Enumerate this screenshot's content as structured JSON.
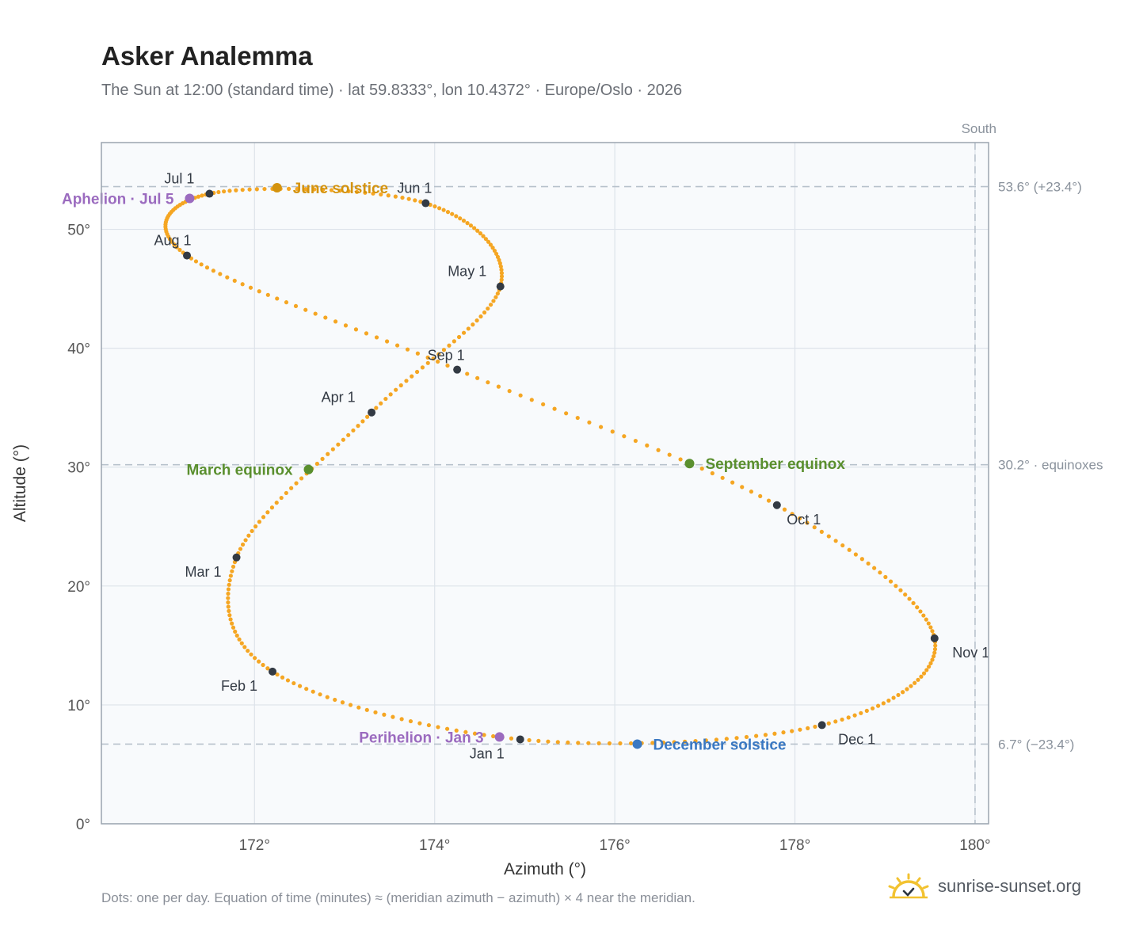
{
  "header": {
    "title": "Asker Analemma",
    "subtitle": "The Sun at 12:00 (standard time) · lat 59.8333°, lon 10.4372° · Europe/Oslo · 2026"
  },
  "footer": {
    "note": "Dots: one per day. Equation of time (minutes) ≈ (meridian azimuth − azimuth) × 4 near the meridian.",
    "brand": "sunrise-sunset.org"
  },
  "colors": {
    "curve": "#f5a623",
    "month_marker": "#333a44",
    "solstice_june": "#d4930e",
    "solstice_december": "#3a78c2",
    "equinox": "#5a8f2e",
    "apsis": "#9b6bbf",
    "grid": "#dde3ea",
    "plot_bg": "#f8fafc",
    "axis": "#9aa4af",
    "ref_line": "#b8c2cc"
  },
  "chart_data": {
    "type": "scatter",
    "xlabel": "Azimuth (°)",
    "ylabel": "Altitude (°)",
    "xlim": [
      170.3,
      180.15
    ],
    "ylim": [
      0,
      57.3
    ],
    "xticks": [
      {
        "value": 172,
        "label": "172°"
      },
      {
        "value": 174,
        "label": "174°"
      },
      {
        "value": 176,
        "label": "176°"
      },
      {
        "value": 178,
        "label": "178°"
      },
      {
        "value": 180,
        "label": "180°"
      }
    ],
    "yticks": [
      {
        "value": 0,
        "label": "0°"
      },
      {
        "value": 10,
        "label": "10°"
      },
      {
        "value": 20,
        "label": "20°"
      },
      {
        "value": 30,
        "label": "30°"
      },
      {
        "value": 40,
        "label": "40°"
      },
      {
        "value": 50,
        "label": "50°"
      }
    ],
    "grid": true,
    "meridian": {
      "azimuth": 180,
      "label": "South"
    },
    "reference_lines": [
      {
        "altitude": 53.6,
        "label": "53.6° (+23.4°)"
      },
      {
        "altitude": 30.2,
        "label": "30.2° · equinoxes"
      },
      {
        "altitude": 6.7,
        "label": "6.7° (−23.4°)"
      }
    ],
    "months": [
      {
        "label": "Jan 1",
        "azimuth": 174.95,
        "altitude": 7.1
      },
      {
        "label": "Feb 1",
        "azimuth": 172.2,
        "altitude": 12.8
      },
      {
        "label": "Mar 1",
        "azimuth": 171.8,
        "altitude": 22.4
      },
      {
        "label": "Apr 1",
        "azimuth": 173.3,
        "altitude": 34.6
      },
      {
        "label": "May 1",
        "azimuth": 174.73,
        "altitude": 45.2
      },
      {
        "label": "Jun 1",
        "azimuth": 173.9,
        "altitude": 52.2
      },
      {
        "label": "Jul 1",
        "azimuth": 171.5,
        "altitude": 53.0
      },
      {
        "label": "Aug 1",
        "azimuth": 171.25,
        "altitude": 47.8
      },
      {
        "label": "Sep 1",
        "azimuth": 174.25,
        "altitude": 38.2
      },
      {
        "label": "Oct 1",
        "azimuth": 177.8,
        "altitude": 26.8
      },
      {
        "label": "Nov 1",
        "azimuth": 179.55,
        "altitude": 15.6
      },
      {
        "label": "Dec 1",
        "azimuth": 178.3,
        "altitude": 8.3
      }
    ],
    "events": [
      {
        "label": "June solstice",
        "azimuth": 172.25,
        "altitude": 53.5,
        "kind": "solstice_june"
      },
      {
        "label": "December solstice",
        "azimuth": 176.25,
        "altitude": 6.7,
        "kind": "solstice_december"
      },
      {
        "label": "March equinox",
        "azimuth": 172.6,
        "altitude": 29.8,
        "kind": "equinox"
      },
      {
        "label": "September equinox",
        "azimuth": 176.83,
        "altitude": 30.3,
        "kind": "equinox"
      },
      {
        "label": "Aphelion · Jul 5",
        "azimuth": 171.28,
        "altitude": 52.6,
        "kind": "apsis"
      },
      {
        "label": "Perihelion · Jan 3",
        "azimuth": 174.72,
        "altitude": 7.3,
        "kind": "apsis"
      }
    ]
  }
}
